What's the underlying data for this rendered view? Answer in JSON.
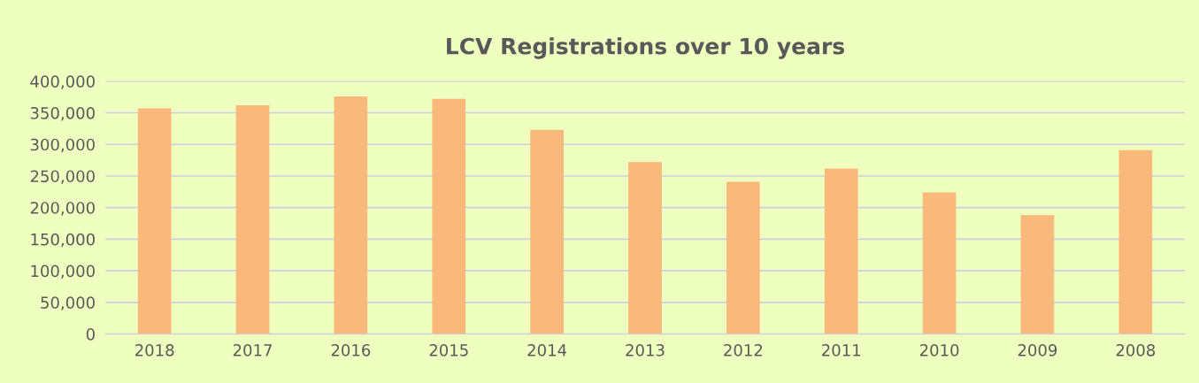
{
  "chart_data": {
    "type": "bar",
    "title": "LCV Registrations over 10 years",
    "categories": [
      "2018",
      "2017",
      "2016",
      "2015",
      "2014",
      "2013",
      "2012",
      "2011",
      "2010",
      "2009",
      "2008"
    ],
    "values": [
      357000,
      362000,
      376000,
      372000,
      323000,
      272000,
      241000,
      262000,
      224000,
      188000,
      291000
    ],
    "color": "#f9b97a",
    "ylim": [
      0,
      400000
    ],
    "yticks": [
      {
        "value": 0,
        "label": "0"
      },
      {
        "value": 50000,
        "label": "50,000"
      },
      {
        "value": 100000,
        "label": "100,000"
      },
      {
        "value": 150000,
        "label": "150,000"
      },
      {
        "value": 200000,
        "label": "200,000"
      },
      {
        "value": 250000,
        "label": "250,000"
      },
      {
        "value": 300000,
        "label": "300,000"
      },
      {
        "value": 350000,
        "label": "350,000"
      },
      {
        "value": 400000,
        "label": "400,000"
      }
    ],
    "grid": "y",
    "legend": false
  }
}
